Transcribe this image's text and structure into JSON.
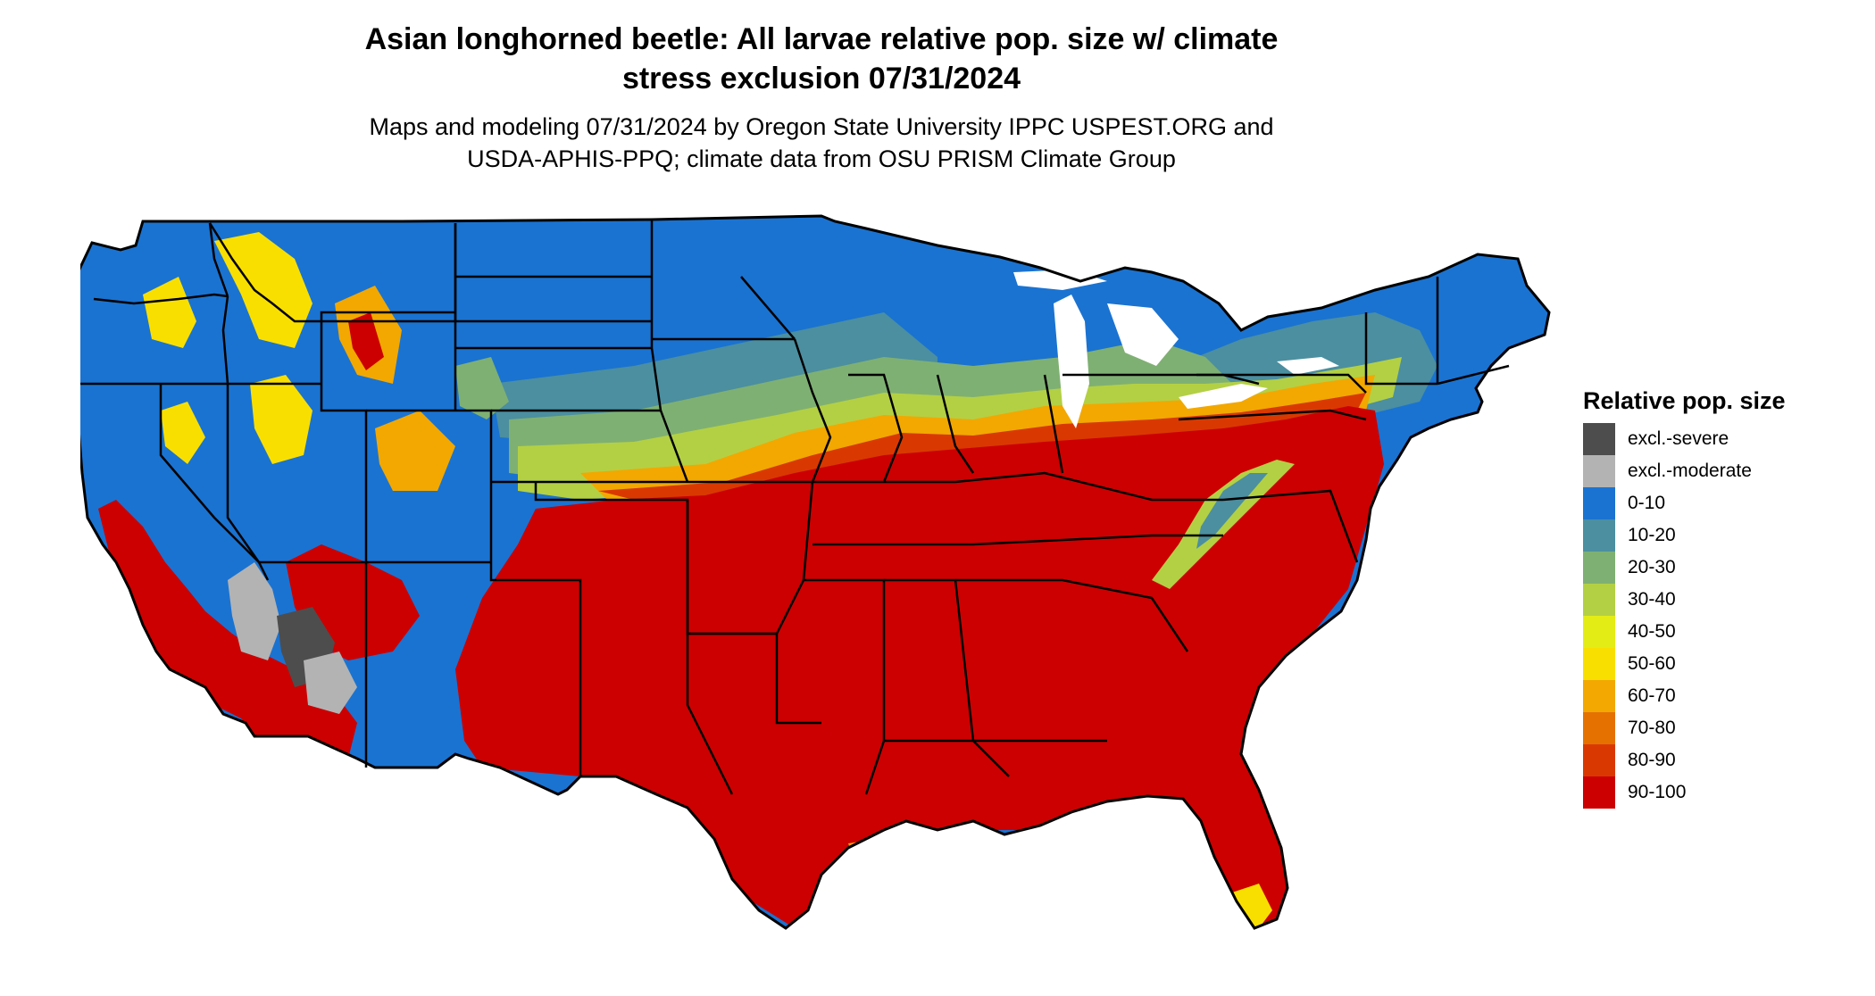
{
  "title_line1": "Asian longhorned beetle: All larvae relative pop. size w/ climate",
  "title_line2": "stress exclusion 07/31/2024",
  "subtitle_line1": "Maps and modeling 07/31/2024 by Oregon State University IPPC USPEST.ORG and",
  "subtitle_line2": "USDA-APHIS-PPQ; climate data from OSU PRISM Climate Group",
  "legend": {
    "title": "Relative pop. size",
    "items": [
      {
        "label": "excl.-severe",
        "color": "#4d4d4d"
      },
      {
        "label": "excl.-moderate",
        "color": "#b3b3b3"
      },
      {
        "label": "0-10",
        "color": "#1a73d1"
      },
      {
        "label": "10-20",
        "color": "#4b8fa0"
      },
      {
        "label": "20-30",
        "color": "#7fb073"
      },
      {
        "label": "30-40",
        "color": "#b3d044"
      },
      {
        "label": "40-50",
        "color": "#e4ec16"
      },
      {
        "label": "50-60",
        "color": "#f9df00"
      },
      {
        "label": "60-70",
        "color": "#f2a800"
      },
      {
        "label": "70-80",
        "color": "#e57100"
      },
      {
        "label": "80-90",
        "color": "#d93900"
      },
      {
        "label": "90-100",
        "color": "#cc0000"
      }
    ]
  },
  "map": {
    "region": "Contiguous United States",
    "colors": {
      "severe": "#4d4d4d",
      "moderate": "#b3b3b3",
      "c0": "#1a73d1",
      "c1": "#4b8fa0",
      "c2": "#7fb073",
      "c3": "#b3d044",
      "c4": "#e4ec16",
      "c5": "#f9df00",
      "c6": "#f2a800",
      "c7": "#e57100",
      "c8": "#d93900",
      "c9": "#cc0000",
      "border": "#000000"
    }
  }
}
